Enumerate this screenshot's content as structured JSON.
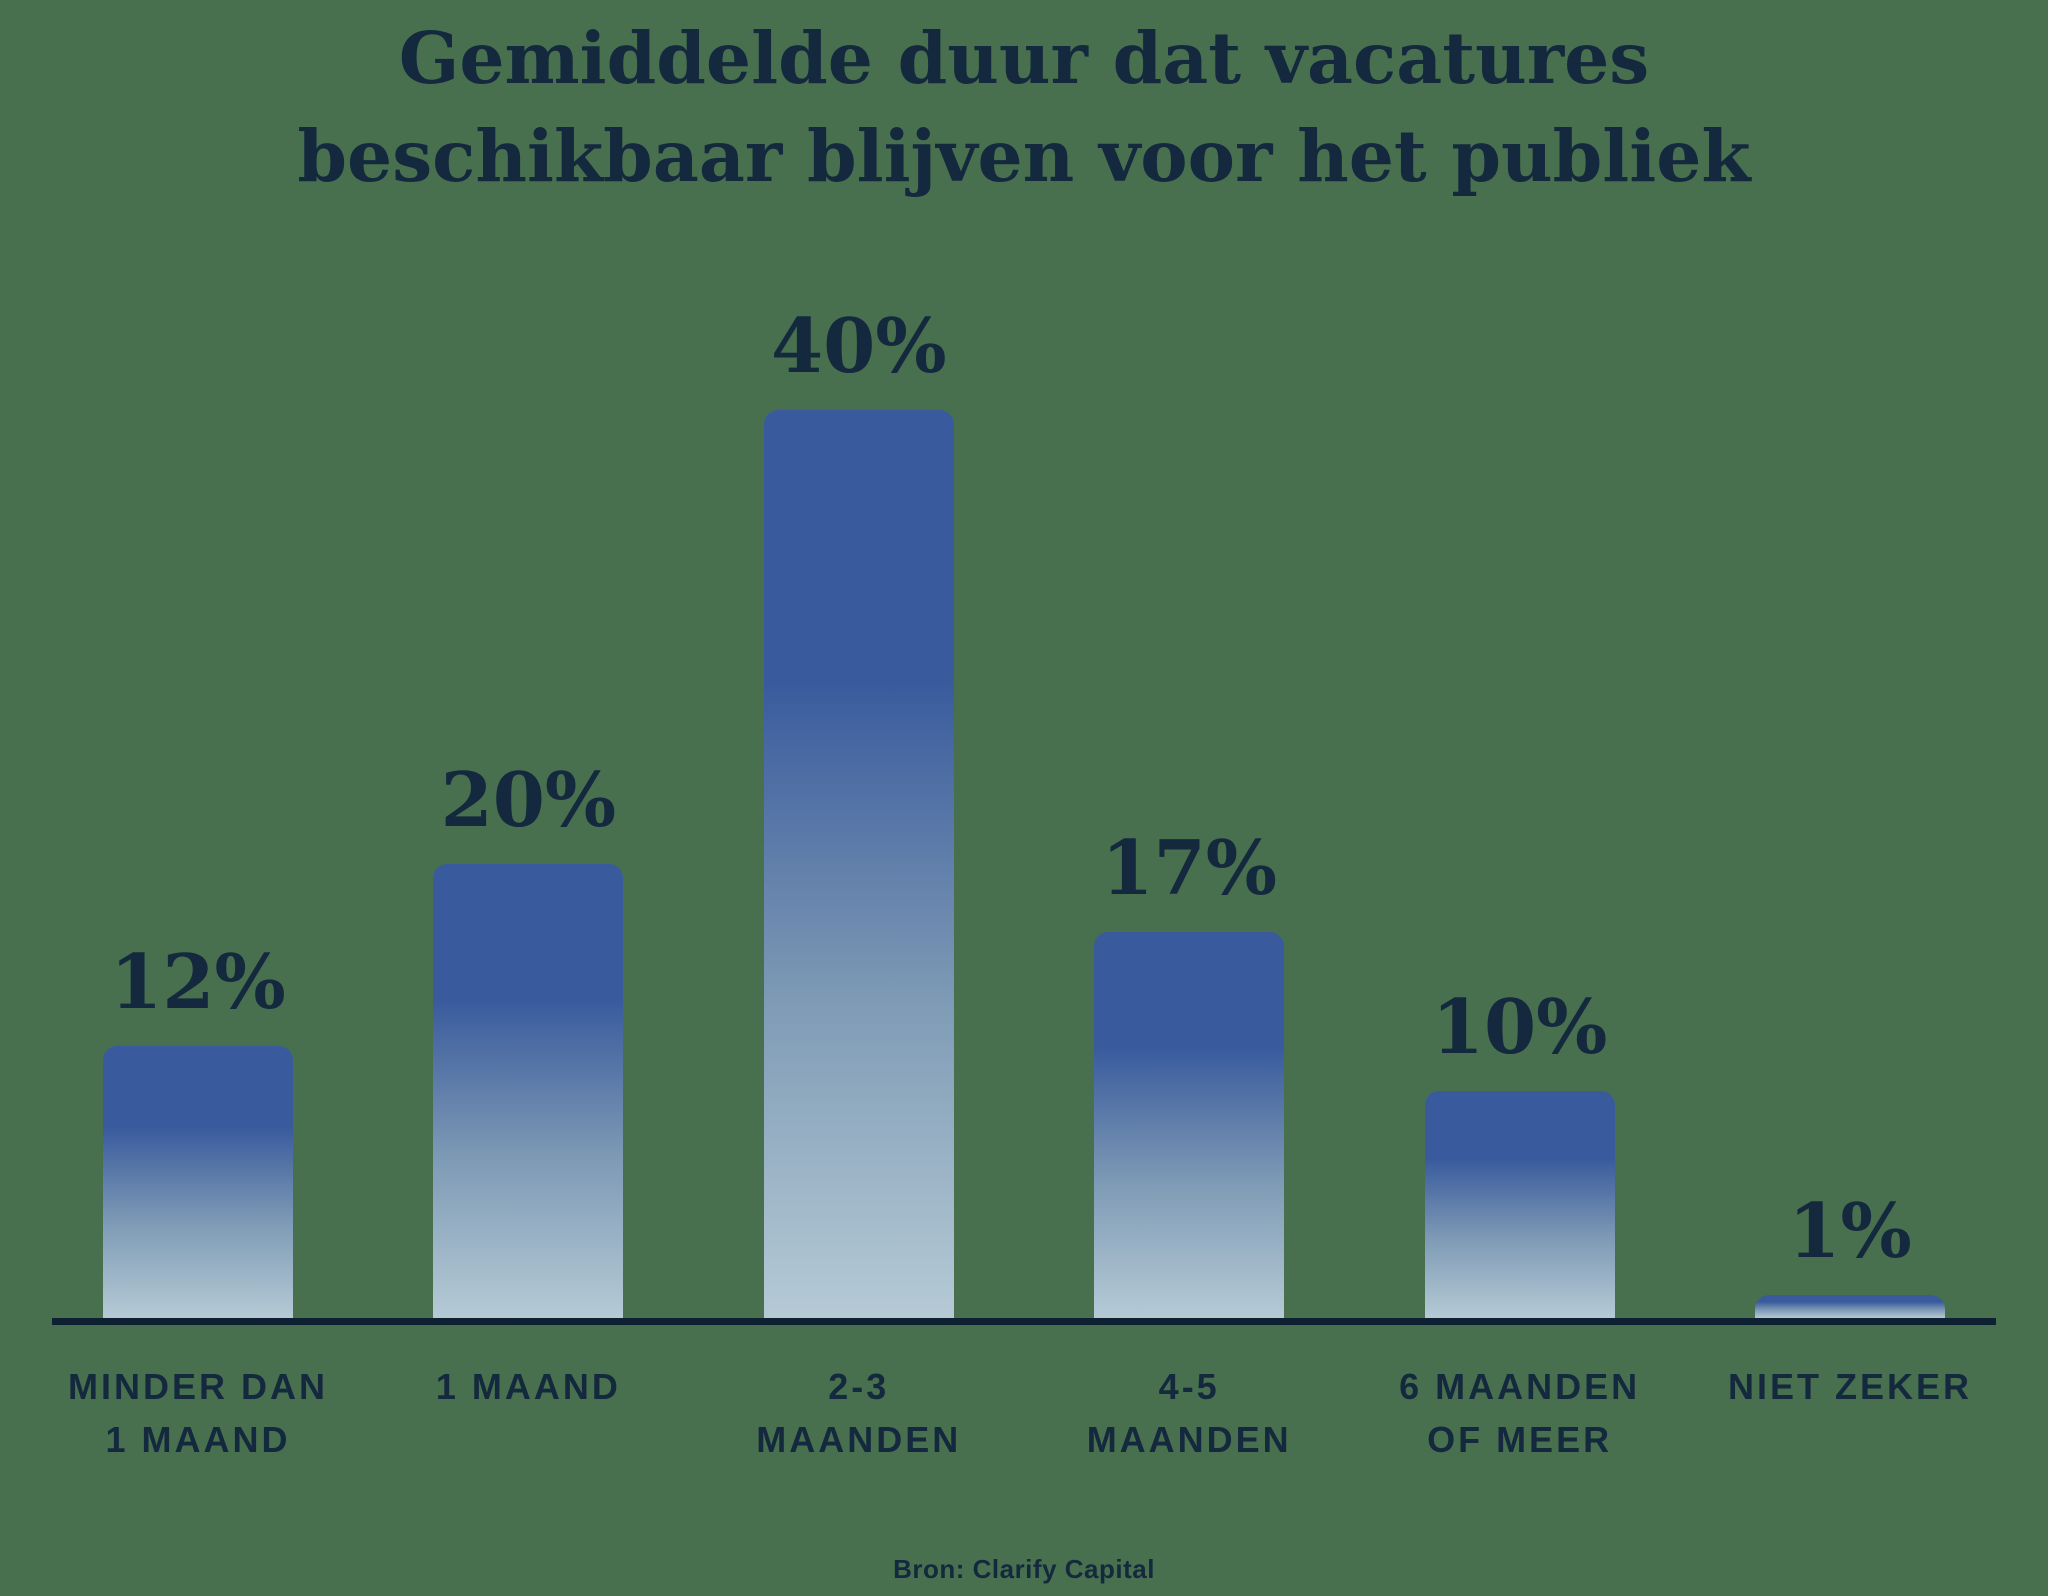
{
  "colors": {
    "background": "#48704F",
    "text": "#14293E",
    "axis": "#0E2132",
    "bar_top": "#395B9D",
    "bar_mid": "#7E9AB5",
    "bar_bottom": "#B5CAD5"
  },
  "title_lines": [
    "Gemiddelde duur dat vacatures",
    "beschikbaar blijven voor het publiek"
  ],
  "source": "Bron: Clarify Capital",
  "chart_data": {
    "type": "bar",
    "title": "Gemiddelde duur dat vacatures beschikbaar blijven voor het publiek",
    "categories": [
      "MINDER DAN 1 MAAND",
      "1 MAAND",
      "2-3 MAANDEN",
      "4-5 MAANDEN",
      "6 MAANDEN OF MEER",
      "NIET ZEKER"
    ],
    "values": [
      12,
      20,
      40,
      17,
      10,
      1
    ],
    "value_labels": [
      "12%",
      "20%",
      "40%",
      "17%",
      "10%",
      "1%"
    ],
    "x_label_lines": [
      [
        "MINDER DAN",
        "1 MAAND"
      ],
      [
        "1 MAAND"
      ],
      [
        "2-3",
        "MAANDEN"
      ],
      [
        "4-5",
        "MAANDEN"
      ],
      [
        "6 MAANDEN",
        "OF MEER"
      ],
      [
        "NIET ZEKER"
      ]
    ],
    "xlabel": "",
    "ylabel": "",
    "ylim": [
      0,
      42
    ],
    "grid": false,
    "legend": false,
    "source": "Bron: Clarify Capital"
  }
}
